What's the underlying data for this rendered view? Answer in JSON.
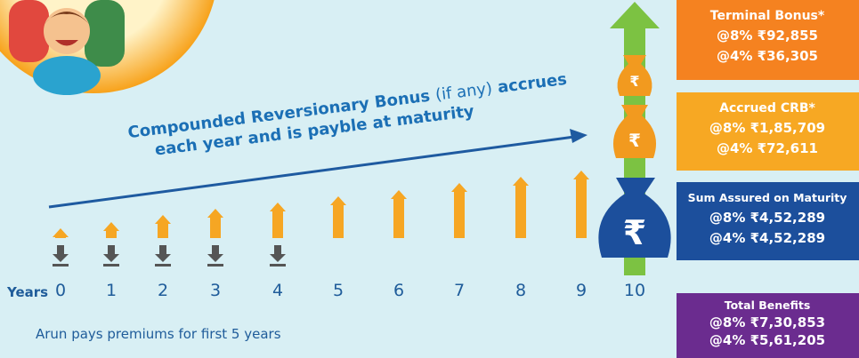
{
  "bonus_text": {
    "line1": [
      "Compounded Reversionary Bonus",
      "(if any)",
      "accrues"
    ],
    "line2": "each year and is payble at maturity"
  },
  "timeline": {
    "axis_label": "Years",
    "years": [
      0,
      1,
      2,
      3,
      4,
      5,
      6,
      7,
      8,
      9,
      10
    ]
  },
  "note": "Arun pays premiums for first 5 years",
  "boxes": [
    {
      "title": "Terminal Bonus*",
      "lines": [
        "@8% ₹92,855",
        "@4% ₹36,305"
      ]
    },
    {
      "title": "Accrued CRB*",
      "lines": [
        "@8% ₹1,85,709",
        "@4% ₹72,611"
      ]
    },
    {
      "title": "Sum Assured on Maturity",
      "lines": [
        "@8% ₹4,52,289",
        "@4% ₹4,52,289"
      ]
    },
    {
      "title": "Total Benefits",
      "lines": [
        "@8% ₹7,30,853",
        "@4% ₹5,61,205"
      ]
    }
  ]
}
